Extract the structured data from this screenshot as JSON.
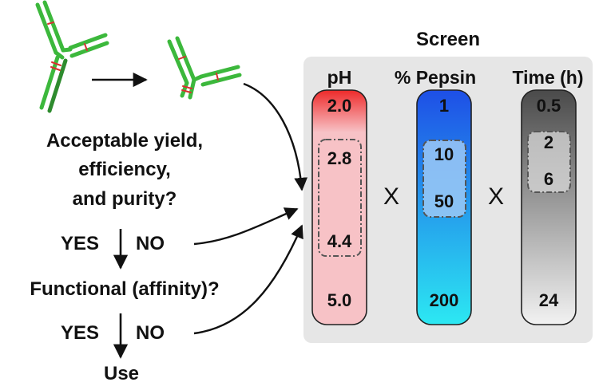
{
  "screen": {
    "title": "Screen",
    "multiply_symbol": "X",
    "columns": [
      {
        "header": "pH",
        "values": [
          "2.0",
          "2.8",
          "4.4",
          "5.0"
        ],
        "color": "#e83a3a"
      },
      {
        "header": "% Pepsin",
        "values": [
          "1",
          "10",
          "50",
          "200"
        ],
        "color": "#2f6ef0"
      },
      {
        "header": "Time (h)",
        "values": [
          "0.5",
          "2",
          "6",
          "24"
        ],
        "color": "#444444"
      }
    ]
  },
  "flow": {
    "question1": [
      "Acceptable yield,",
      "efficiency,",
      "and purity?"
    ],
    "question2": "Functional (affinity)?",
    "yes": "YES",
    "no": "NO",
    "result": "Use"
  },
  "colors": {
    "antibody_green": "#3cb83c",
    "antibody_dark": "#2e8b2e",
    "disulfide_red": "#d83030",
    "panel_bg": "#e6e6e6",
    "ph_gradient": [
      "#ee2a2a",
      "#f7c2c6"
    ],
    "pepsin_gradient": [
      "#1e4fe6",
      "#2ce8f2"
    ],
    "time_gradient": [
      "#4a4a4a",
      "#f2f2f2"
    ]
  }
}
